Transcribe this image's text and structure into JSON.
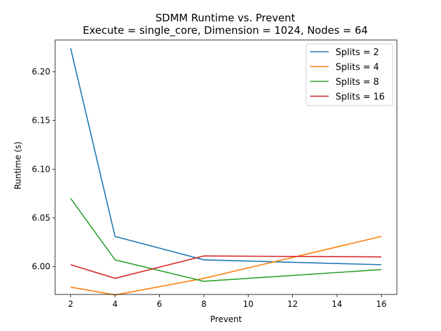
{
  "chart_data": {
    "type": "line",
    "title": "SDMM Runtime vs. Prevent",
    "subtitle": "Execute = single_core, Dimension = 1024, Nodes = 64",
    "xlabel": "Prevent",
    "ylabel": "Runtime (s)",
    "xlim": [
      1.3,
      16.7
    ],
    "ylim": [
      5.9715,
      6.2325
    ],
    "xticks": [
      2,
      4,
      6,
      8,
      10,
      12,
      14,
      16
    ],
    "yticks": [
      6.0,
      6.05,
      6.1,
      6.15,
      6.2
    ],
    "ytick_labels": [
      "6.00",
      "6.05",
      "6.10",
      "6.15",
      "6.20"
    ],
    "x": [
      2,
      4,
      8,
      16
    ],
    "grid": false,
    "legend_position": "top-right",
    "series": [
      {
        "name": "Splits = 2",
        "color": "#1f77b4",
        "values": [
          6.224,
          6.031,
          6.007,
          6.002
        ]
      },
      {
        "name": "Splits = 4",
        "color": "#ff7f0e",
        "values": [
          5.979,
          5.971,
          5.988,
          6.031
        ]
      },
      {
        "name": "Splits = 8",
        "color": "#2ca02c",
        "values": [
          6.07,
          6.007,
          5.985,
          5.997
        ]
      },
      {
        "name": "Splits = 16",
        "color": "#d62728",
        "values": [
          6.002,
          5.988,
          6.011,
          6.01
        ]
      }
    ]
  }
}
